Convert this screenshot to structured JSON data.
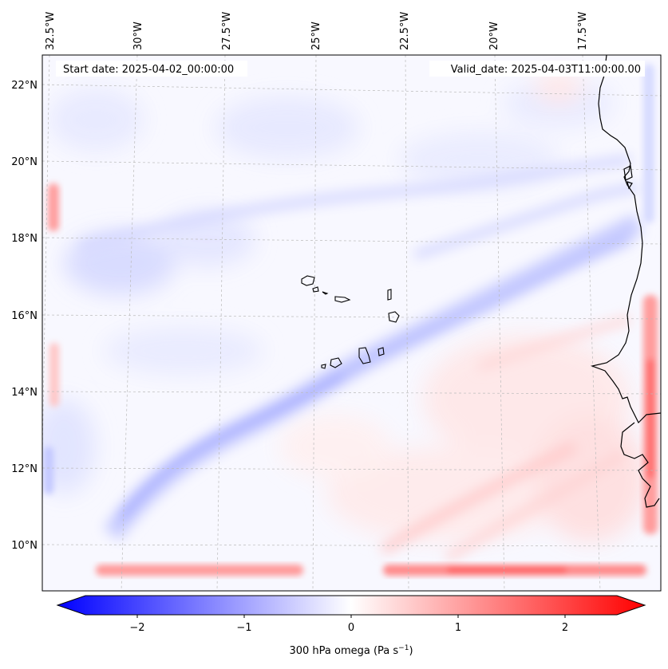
{
  "map": {
    "start_label": "Start date: 2025-04-02_00:00:00",
    "valid_label": "Valid_date: 2025-04-03T11:00:00.00",
    "lon_labels": [
      "32.5°W",
      "30°W",
      "27.5°W",
      "25°W",
      "22.5°W",
      "20°W",
      "17.5°W"
    ],
    "lat_labels": [
      "22°N",
      "20°N",
      "18°N",
      "16°N",
      "14°N",
      "12°N",
      "10°N"
    ],
    "colors": {
      "negative": "#0000ff",
      "zero": "#ffffff",
      "positive": "#ff0000",
      "coast": "#000000"
    }
  },
  "colorbar": {
    "ticks": [
      "−2",
      "−1",
      "0",
      "1",
      "2"
    ],
    "tick_values": [
      -2,
      -1,
      0,
      1,
      2
    ],
    "vmin": -2.6,
    "vmax": 2.6,
    "label": "300 hPa omega (Pa s",
    "label_sup": "−1",
    "label_end": ")"
  }
}
